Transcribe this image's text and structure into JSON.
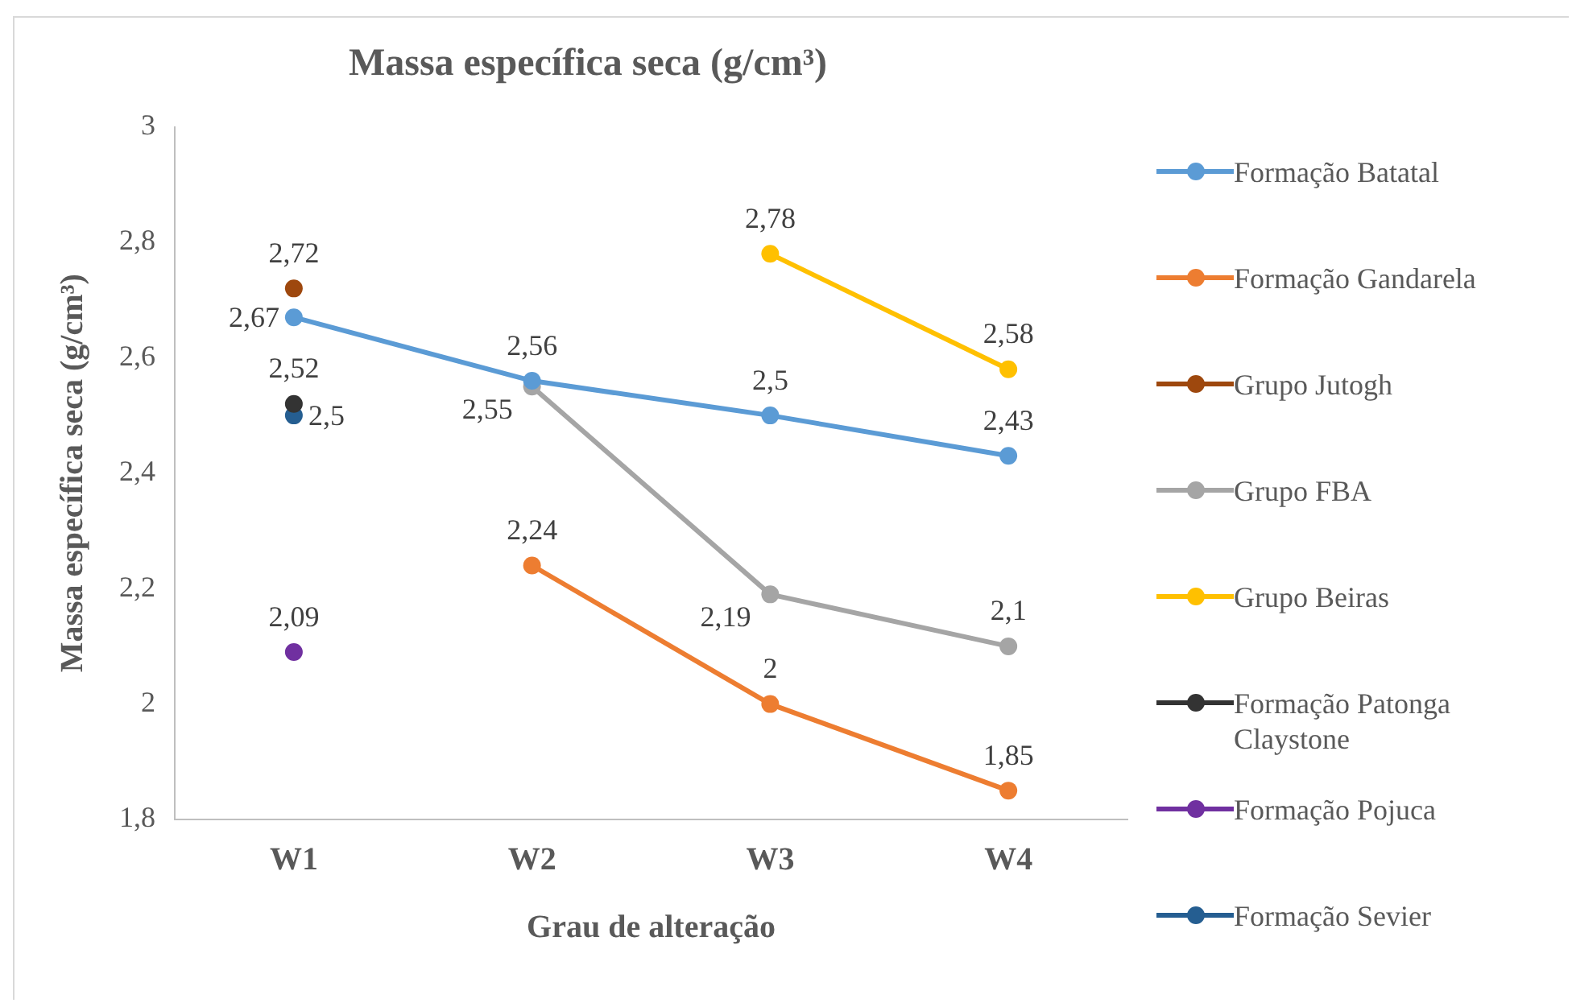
{
  "chart_data": {
    "type": "line",
    "title": "Massa específica seca (g/cm³)",
    "xlabel": "Grau de alteração",
    "ylabel": "Massa específica seca (g/cm³)",
    "categories": [
      "W1",
      "W2",
      "W3",
      "W4"
    ],
    "ylim": [
      1.8,
      3
    ],
    "yticks": [
      {
        "value": 1.8,
        "label": "1,8"
      },
      2,
      {
        "value": 2.2,
        "label": "2,2"
      },
      {
        "value": 2.4,
        "label": "2,4"
      },
      {
        "value": 2.6,
        "label": "2,6"
      },
      {
        "value": 2.8,
        "label": "2,8"
      },
      3
    ],
    "grid": false,
    "legend": "right",
    "marker": "circle",
    "line_style": "solid",
    "series": [
      {
        "name": "Formação Batatal",
        "color": "#5b9bd5",
        "values": [
          2.67,
          2.56,
          2.5,
          2.43
        ],
        "value_labels": [
          "2,67",
          "2,56",
          "2,5",
          "2,43"
        ]
      },
      {
        "name": "Formação Gandarela",
        "color": "#ed7d31",
        "values": [
          null,
          2.24,
          2,
          1.85
        ],
        "value_labels": [
          null,
          "2,24",
          "2",
          "1,85"
        ]
      },
      {
        "name": "Grupo Jutogh",
        "color": "#9e480e",
        "values": [
          2.72,
          null,
          null,
          null
        ],
        "value_labels": [
          "2,72",
          null,
          null,
          null
        ]
      },
      {
        "name": "Grupo FBA",
        "color": "#a5a5a5",
        "values": [
          null,
          2.55,
          2.19,
          2.1
        ],
        "value_labels": [
          null,
          "2,55",
          "2,19",
          "2,1"
        ]
      },
      {
        "name": "Grupo Beiras",
        "color": "#ffc000",
        "values": [
          null,
          null,
          2.78,
          2.58
        ],
        "value_labels": [
          null,
          null,
          "2,78",
          "2,58"
        ]
      },
      {
        "name": "Formação Patonga Claystone",
        "color": "#333333",
        "values": [
          2.52,
          null,
          null,
          null
        ],
        "value_labels": [
          "2,52",
          null,
          null,
          null
        ]
      },
      {
        "name": "Formação Pojuca",
        "color": "#7030a0",
        "values": [
          2.09,
          null,
          null,
          null
        ],
        "value_labels": [
          "2,09",
          null,
          null,
          null
        ]
      },
      {
        "name": "Formação Sevier",
        "color": "#255e91",
        "values": [
          2.5,
          null,
          null,
          null
        ],
        "value_labels": [
          "2,5",
          null,
          null,
          null
        ]
      }
    ]
  }
}
